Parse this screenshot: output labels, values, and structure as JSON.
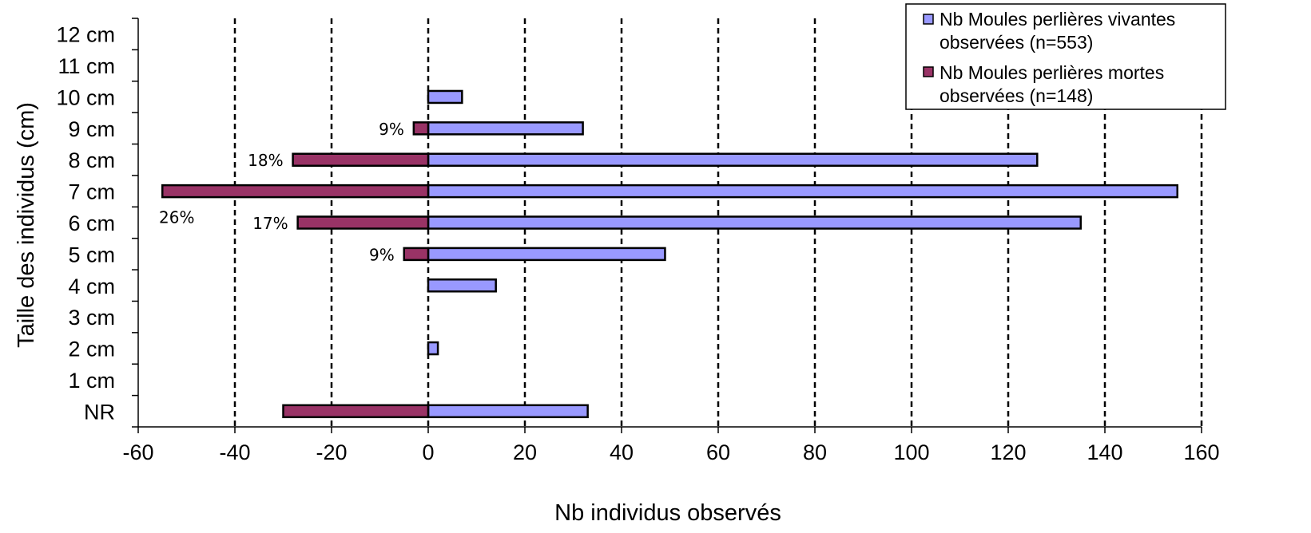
{
  "chart_data": {
    "type": "bar",
    "orientation": "horizontal",
    "stacked": true,
    "categories": [
      "NR",
      "1 cm",
      "2 cm",
      "3 cm",
      "4 cm",
      "5 cm",
      "6 cm",
      "7 cm",
      "8 cm",
      "9 cm",
      "10 cm",
      "11 cm",
      "12 cm"
    ],
    "series": [
      {
        "name": "Nb Moules perlières vivantes observées (n=553)",
        "color": "#9999ff",
        "values": [
          33,
          0,
          2,
          0,
          14,
          49,
          135,
          155,
          126,
          32,
          7,
          0,
          0
        ]
      },
      {
        "name": "Nb Moules perlières mortes observées (n=148)",
        "color": "#993366",
        "values": [
          -30,
          0,
          0,
          0,
          0,
          -5,
          -27,
          -55,
          -28,
          -3,
          0,
          0,
          0
        ]
      }
    ],
    "annotations": [
      {
        "category": "9 cm",
        "text": "9%"
      },
      {
        "category": "8 cm",
        "text": "18%"
      },
      {
        "category": "7 cm",
        "text": "26%"
      },
      {
        "category": "6 cm",
        "text": "17%"
      },
      {
        "category": "5 cm",
        "text": "9%"
      }
    ],
    "xlabel": "Nb individus observés",
    "ylabel": "Taille des individus (cm)",
    "xlim": [
      -60,
      160
    ],
    "xticks": [
      -60,
      -40,
      -20,
      0,
      20,
      40,
      60,
      80,
      100,
      120,
      140,
      160
    ],
    "grid": "vertical dashed lines",
    "legend_position": "top-right"
  }
}
